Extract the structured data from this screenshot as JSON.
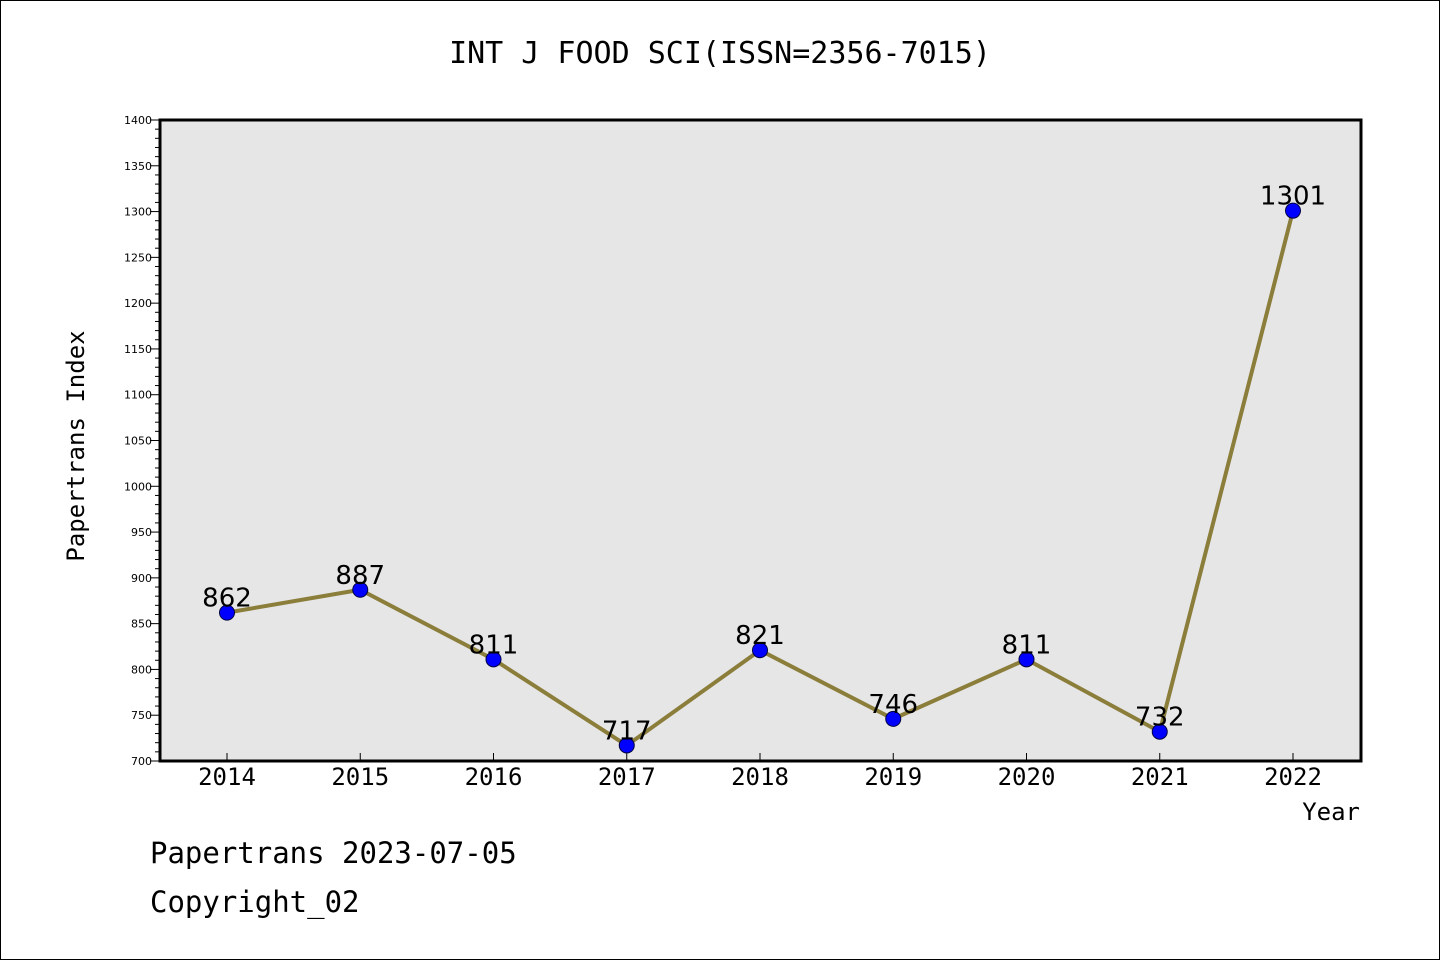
{
  "chart_data": {
    "type": "line",
    "title": "INT J FOOD SCI(ISSN=2356-7015)",
    "xlabel": "Year",
    "ylabel": "Papertrans Index",
    "categories": [
      "2014",
      "2015",
      "2016",
      "2017",
      "2018",
      "2019",
      "2020",
      "2021",
      "2022"
    ],
    "values": [
      862,
      887,
      811,
      717,
      821,
      746,
      811,
      732,
      1301
    ],
    "ylim": [
      700,
      1400
    ],
    "yticks": [
      700,
      750,
      800,
      850,
      900,
      950,
      1000,
      1050,
      1100,
      1150,
      1200,
      1250,
      1300,
      1350,
      1400
    ],
    "grid": false,
    "data_labels": true,
    "colors": {
      "line": "#8B7D3A",
      "marker": "#0000FF",
      "plot_background": "#E6E6E6"
    }
  },
  "footer": {
    "line1": "Papertrans 2023-07-05",
    "line2": "Copyright_02"
  }
}
